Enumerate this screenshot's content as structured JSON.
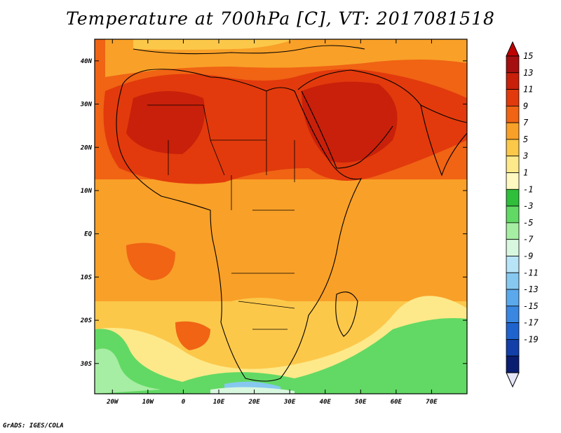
{
  "title": "Temperature at 700hPa [C], VT: 2017081518",
  "credit": "GrADS: IGES/COLA",
  "map": {
    "lat_labels": [
      "40N",
      "30N",
      "20N",
      "10N",
      "EQ",
      "10S",
      "20S",
      "30S"
    ],
    "lon_labels": [
      "20W",
      "10W",
      "0",
      "10E",
      "20E",
      "30E",
      "40E",
      "50E",
      "60E",
      "70E"
    ],
    "lat_values": [
      40,
      30,
      20,
      10,
      0,
      -10,
      -20,
      -30
    ],
    "lon_values": [
      -20,
      -10,
      0,
      10,
      20,
      30,
      40,
      50,
      60,
      70
    ]
  },
  "colorbar": {
    "labels": [
      "15",
      "13",
      "11",
      "9",
      "7",
      "5",
      "3",
      "1",
      "-1",
      "-3",
      "-5",
      "-7",
      "-9",
      "-11",
      "-13",
      "-15",
      "-17",
      "-19"
    ],
    "colors": [
      "#a50f0f",
      "#c8200a",
      "#e23a0c",
      "#f06414",
      "#f9a028",
      "#fcc84a",
      "#fde98a",
      "#fff8c0",
      "#2fbf3a",
      "#62d964",
      "#a6eea3",
      "#d8f7df",
      "#b7e4f6",
      "#86c8f0",
      "#5ba9ec",
      "#3a87e2",
      "#1f63cf",
      "#1240a8",
      "#0b1d70"
    ],
    "over_color": "#c00000",
    "under_color": "#e6e6fa"
  }
}
